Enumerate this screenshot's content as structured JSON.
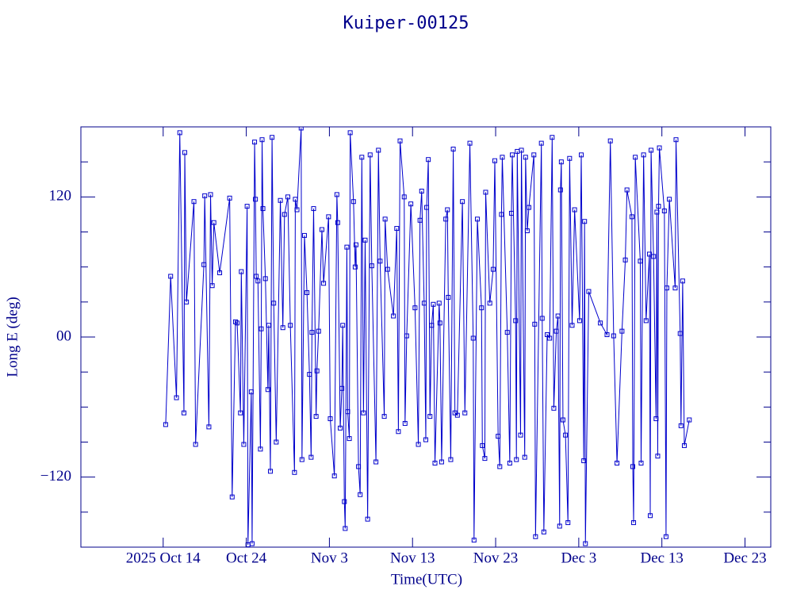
{
  "chart_data": {
    "type": "line",
    "title": "Kuiper-00125",
    "xlabel": "Time(UTC)",
    "ylabel": "Long E (deg)",
    "color": "#0000cc",
    "xlim": [
      277.1,
      360.1
    ],
    "xticks": [
      {
        "value": 287,
        "label": "2025 Oct 14"
      },
      {
        "value": 297,
        "label": "Oct 24"
      },
      {
        "value": 307,
        "label": "Nov  3"
      },
      {
        "value": 317,
        "label": "Nov 13"
      },
      {
        "value": 327,
        "label": "Nov 23"
      },
      {
        "value": 337,
        "label": "Dec  3"
      },
      {
        "value": 347,
        "label": "Dec 13"
      },
      {
        "value": 357,
        "label": "Dec 23"
      }
    ],
    "ylim": [
      -180,
      180
    ],
    "yticks": [
      {
        "value": 120,
        "label": "120"
      },
      {
        "value": 0,
        "label": "00"
      },
      {
        "value": -120,
        "label": "−120"
      }
    ],
    "yminorticks": [
      150,
      90,
      60,
      30,
      -30,
      -60,
      -90,
      -150
    ],
    "x": [
      287.3,
      287.9,
      288.6,
      289.0,
      289.5,
      289.6,
      289.8,
      290.7,
      290.9,
      291.9,
      292.0,
      292.5,
      292.7,
      292.9,
      293.1,
      293.8,
      295.0,
      295.3,
      295.7,
      295.9,
      296.3,
      296.4,
      296.7,
      297.1,
      297.2,
      297.6,
      297.7,
      298.0,
      298.1,
      298.2,
      298.4,
      298.7,
      298.8,
      298.9,
      299.0,
      299.3,
      299.6,
      299.7,
      299.9,
      300.1,
      300.3,
      300.6,
      301.1,
      301.4,
      301.6,
      302.0,
      302.3,
      302.8,
      302.9,
      303.1,
      303.6,
      303.7,
      304.0,
      304.3,
      304.6,
      304.8,
      304.9,
      305.1,
      305.4,
      305.5,
      305.7,
      306.1,
      306.3,
      306.9,
      307.1,
      307.6,
      307.9,
      308.0,
      308.3,
      308.5,
      308.6,
      308.8,
      308.9,
      309.1,
      309.2,
      309.4,
      309.5,
      309.9,
      310.1,
      310.2,
      310.5,
      310.7,
      310.9,
      311.1,
      311.3,
      311.6,
      311.9,
      312.1,
      312.6,
      312.9,
      313.1,
      313.6,
      313.7,
      314.0,
      314.7,
      315.1,
      315.3,
      315.5,
      316.0,
      316.1,
      316.3,
      316.8,
      317.3,
      317.7,
      317.9,
      318.1,
      318.4,
      318.6,
      318.7,
      318.9,
      319.1,
      319.3,
      319.5,
      319.7,
      320.2,
      320.3,
      320.5,
      321.0,
      321.2,
      321.3,
      321.6,
      321.9,
      322.1,
      322.4,
      323.0,
      323.3,
      323.9,
      324.3,
      324.4,
      324.8,
      325.3,
      325.4,
      325.7,
      325.8,
      326.3,
      326.7,
      326.9,
      327.3,
      327.5,
      327.7,
      327.8,
      328.4,
      328.7,
      328.9,
      329.0,
      329.4,
      329.5,
      329.6,
      330.0,
      330.1,
      330.5,
      330.6,
      330.8,
      331.0,
      331.6,
      331.7,
      331.8,
      332.5,
      332.6,
      332.8,
      333.2,
      333.5,
      333.8,
      334.0,
      334.3,
      334.5,
      334.7,
      334.8,
      334.9,
      335.1,
      335.4,
      335.7,
      335.9,
      336.2,
      336.5,
      337.1,
      337.3,
      337.6,
      337.7,
      337.8,
      338.2,
      339.6,
      340.4,
      340.8,
      341.2,
      341.6,
      342.2,
      342.6,
      342.8,
      343.4,
      343.5,
      343.6,
      343.8,
      344.4,
      344.5,
      344.8,
      345.1,
      345.5,
      345.6,
      345.7,
      346.0,
      346.3,
      346.4,
      346.5,
      346.6,
      346.7,
      347.3,
      347.5,
      347.6,
      347.9,
      348.6,
      348.7,
      349.2,
      349.3,
      349.5,
      349.7,
      350.3
    ],
    "values": [
      -75,
      52,
      -52,
      175,
      -65,
      158,
      30,
      116,
      -92,
      62,
      121,
      -77,
      122,
      44,
      98,
      55,
      119,
      -137,
      13,
      12,
      -65,
      56,
      -92,
      112,
      -178,
      -47,
      -177,
      167,
      118,
      52,
      48,
      -96,
      7,
      169,
      110,
      50,
      -45,
      10,
      -115,
      171,
      29,
      -90,
      117,
      8,
      105,
      120,
      10,
      -116,
      118,
      109,
      179,
      -105,
      87,
      38,
      -32,
      -103,
      4,
      110,
      -68,
      -29,
      5,
      92,
      46,
      103,
      -70,
      -119,
      122,
      98,
      -78,
      -44,
      10,
      -141,
      -164,
      77,
      -64,
      -87,
      175,
      116,
      60,
      79,
      -111,
      -135,
      154,
      -65,
      83,
      -156,
      156,
      61,
      -107,
      160,
      65,
      -68,
      101,
      58,
      18,
      93,
      -81,
      168,
      120,
      -74,
      1,
      114,
      25,
      -92,
      100,
      125,
      29,
      -88,
      111,
      152,
      -68,
      10,
      28,
      -108,
      29,
      12,
      -107,
      101,
      109,
      34,
      -105,
      161,
      -65,
      -67,
      116,
      -65,
      166,
      -1,
      -174,
      101,
      25,
      -93,
      -104,
      124,
      29,
      58,
      151,
      -85,
      -111,
      105,
      154,
      4,
      -108,
      106,
      156,
      14,
      -105,
      159,
      -84,
      160,
      -103,
      154,
      91,
      111,
      156,
      11,
      -171,
      166,
      16,
      -167,
      2,
      -1,
      171,
      -61,
      5,
      18,
      -162,
      126,
      150,
      -71,
      -84,
      -159,
      153,
      10,
      109,
      14,
      156,
      -106,
      99,
      -177,
      39,
      12,
      2,
      168,
      1,
      -108,
      5,
      66,
      126,
      103,
      -111,
      -159,
      154,
      65,
      -108,
      156,
      14,
      71,
      -153,
      160,
      69,
      -70,
      107,
      -102,
      112,
      162,
      108,
      -171,
      42,
      118,
      42,
      169,
      3,
      -76,
      48,
      -93,
      -71
    ]
  }
}
